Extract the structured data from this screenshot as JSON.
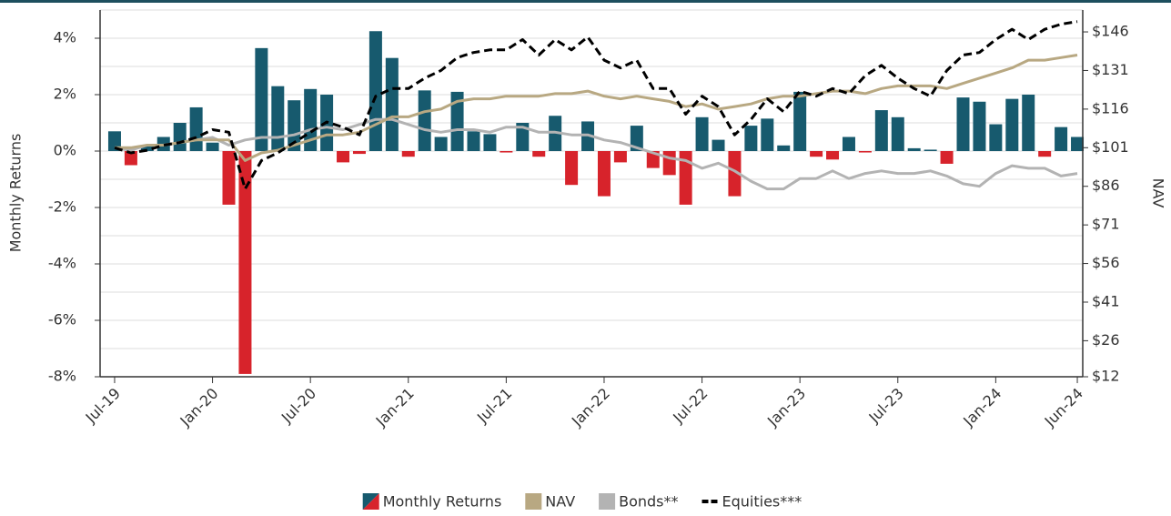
{
  "chart_data": {
    "type": "bar",
    "ylabel": "Monthly Returns",
    "y2label": "NAV",
    "categories": [
      "Jul-19",
      null,
      null,
      null,
      null,
      null,
      "Jan-20",
      null,
      null,
      null,
      null,
      null,
      "Jul-20",
      null,
      null,
      null,
      null,
      null,
      "Jan-21",
      null,
      null,
      null,
      null,
      null,
      "Jul-21",
      null,
      null,
      null,
      null,
      null,
      "Jan-22",
      null,
      null,
      null,
      null,
      null,
      "Jul-22",
      null,
      null,
      null,
      null,
      null,
      "Jan-23",
      null,
      null,
      null,
      null,
      null,
      "Jul-23",
      null,
      null,
      null,
      null,
      null,
      "Jan-24",
      null,
      null,
      null,
      null,
      "Jun-24"
    ],
    "ylim": [
      -8,
      5
    ],
    "yticks": [
      {
        "value": -8,
        "label": "-8%"
      },
      {
        "value": -6,
        "label": "-6%"
      },
      {
        "value": -4,
        "label": "-4%"
      },
      {
        "value": -2,
        "label": "-2%"
      },
      {
        "value": 0,
        "label": "0%"
      },
      {
        "value": 2,
        "label": "2%"
      },
      {
        "value": 4,
        "label": "4%"
      }
    ],
    "yminor_ticks": [
      -7,
      -5,
      -3,
      -1,
      1,
      3,
      5
    ],
    "y2lim": [
      12,
      154.5
    ],
    "y2ticks": [
      {
        "value": 12,
        "label": "$12"
      },
      {
        "value": 26,
        "label": "$26"
      },
      {
        "value": 41,
        "label": "$41"
      },
      {
        "value": 56,
        "label": "$56"
      },
      {
        "value": 71,
        "label": "$71"
      },
      {
        "value": 86,
        "label": "$86"
      },
      {
        "value": 101,
        "label": "$101"
      },
      {
        "value": 116,
        "label": "$116"
      },
      {
        "value": 131,
        "label": "$131"
      },
      {
        "value": 146,
        "label": "$146"
      }
    ],
    "grid": true,
    "legend": "bottom",
    "series": [
      {
        "name": "Monthly Returns",
        "type": "bar",
        "color": "#175a6e",
        "negative_color": "#d7232b",
        "values": [
          0.7,
          -0.5,
          0.2,
          0.5,
          1.0,
          1.55,
          0.3,
          -1.9,
          -7.9,
          3.65,
          2.3,
          1.8,
          2.2,
          2.0,
          -0.4,
          -0.1,
          4.25,
          3.3,
          -0.2,
          2.15,
          0.5,
          2.1,
          0.7,
          0.6,
          -0.05,
          1.0,
          -0.2,
          1.25,
          -1.2,
          1.05,
          -1.6,
          -0.4,
          0.9,
          -0.6,
          -0.85,
          -1.9,
          1.2,
          0.4,
          -1.6,
          0.9,
          1.15,
          0.2,
          2.1,
          -0.2,
          -0.3,
          0.5,
          -0.05,
          1.45,
          1.2,
          0.1,
          0.05,
          -0.45,
          1.9,
          1.75,
          0.95,
          1.85,
          2.0,
          -0.2,
          0.85,
          0.5
        ]
      },
      {
        "name": "NAV",
        "type": "line",
        "axis": "y2",
        "color": "#b8a882",
        "values": [
          101,
          101,
          102,
          102,
          103,
          104,
          104,
          104,
          96,
          99,
          100,
          102,
          104,
          106,
          106,
          107,
          110,
          113,
          113,
          115,
          116,
          119,
          120,
          120,
          121,
          121,
          121,
          122,
          122,
          123,
          121,
          120,
          121,
          120,
          119,
          117,
          118,
          116,
          117,
          118,
          120,
          121,
          121,
          122,
          123,
          123,
          122,
          124,
          125,
          125,
          125,
          124,
          126,
          128,
          130,
          132,
          135,
          135,
          136,
          137
        ]
      },
      {
        "name": "Bonds**",
        "type": "line",
        "axis": "y2",
        "color": "#b3b3b3",
        "values": [
          101,
          100,
          102,
          102,
          103,
          104,
          105,
          102,
          104,
          105,
          105,
          106,
          108,
          109,
          108,
          110,
          112,
          112,
          110,
          108,
          107,
          108,
          108,
          107,
          109,
          109,
          107,
          107,
          106,
          106,
          104,
          103,
          101,
          99,
          97,
          96,
          93,
          95,
          92,
          88,
          85,
          85,
          89,
          89,
          92,
          89,
          91,
          92,
          91,
          91,
          92,
          90,
          87,
          86,
          91,
          94,
          93,
          93,
          90,
          91
        ]
      },
      {
        "name": "Equities***",
        "type": "line",
        "axis": "y2",
        "color": "#000000",
        "dashed": true,
        "values": [
          101,
          99,
          100,
          102,
          103,
          105,
          108,
          107,
          85,
          96,
          99,
          103,
          107,
          111,
          109,
          106,
          121,
          124,
          124,
          128,
          131,
          136,
          138,
          139,
          139,
          143,
          137,
          143,
          139,
          144,
          135,
          132,
          135,
          124,
          124,
          114,
          121,
          117,
          106,
          112,
          120,
          115,
          123,
          121,
          124,
          122,
          129,
          133,
          128,
          124,
          121,
          131,
          137,
          138,
          143,
          147,
          143,
          147,
          149,
          150
        ]
      }
    ]
  }
}
